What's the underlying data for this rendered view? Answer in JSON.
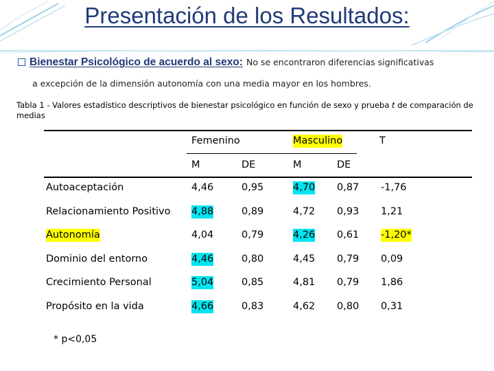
{
  "title": "Presentación de los Resultados:",
  "bullet": {
    "heading": "Bienestar Psicológico de acuerdo al sexo:",
    "text_line1": "No se encontraron diferencias significativas",
    "text_line2": "a excepción de la dimensión autonomía con una media mayor en los hombres."
  },
  "caption": {
    "prefix": "Tabla 1 - Valores estadístico descriptivos de bienestar psicológico en función de sexo y prueba ",
    "italic": "t",
    "suffix": " de comparación de medias"
  },
  "table": {
    "headers": {
      "femenino": "Femenino",
      "masculino": "Masculino",
      "t": "T"
    },
    "subheaders": {
      "m1": "M",
      "de1": "DE",
      "m2": "M",
      "de2": "DE"
    },
    "rows": [
      {
        "label": "Autoaceptación",
        "fm": "4,46",
        "fde": "0,95",
        "mm": "4,70",
        "mde": "0,87",
        "t": "-1,76"
      },
      {
        "label": "Relacionamiento Positivo",
        "fm": "4,88",
        "fde": "0,89",
        "mm": "4,72",
        "mde": "0,93",
        "t": "1,21"
      },
      {
        "label": "Autonomía",
        "fm": "4,04",
        "fde": "0,79",
        "mm": "4,26",
        "mde": "0,61",
        "t": "-1,20*"
      },
      {
        "label": "Dominio del entorno",
        "fm": "4,46",
        "fde": "0,80",
        "mm": "4,45",
        "mde": "0,79",
        "t": "0,09"
      },
      {
        "label": "Crecimiento Personal",
        "fm": "5,04",
        "fde": "0,85",
        "mm": "4,81",
        "mde": "0,79",
        "t": "1,86"
      },
      {
        "label": "Propósito en la vida",
        "fm": "4,66",
        "fde": "0,83",
        "mm": "4,62",
        "mde": "0,80",
        "t": "0,31"
      }
    ]
  },
  "footnote": "* p<0,05",
  "colors": {
    "title": "#1f3a77",
    "highlight_yellow": "#ffff00",
    "highlight_cyan": "#00e5f0"
  }
}
